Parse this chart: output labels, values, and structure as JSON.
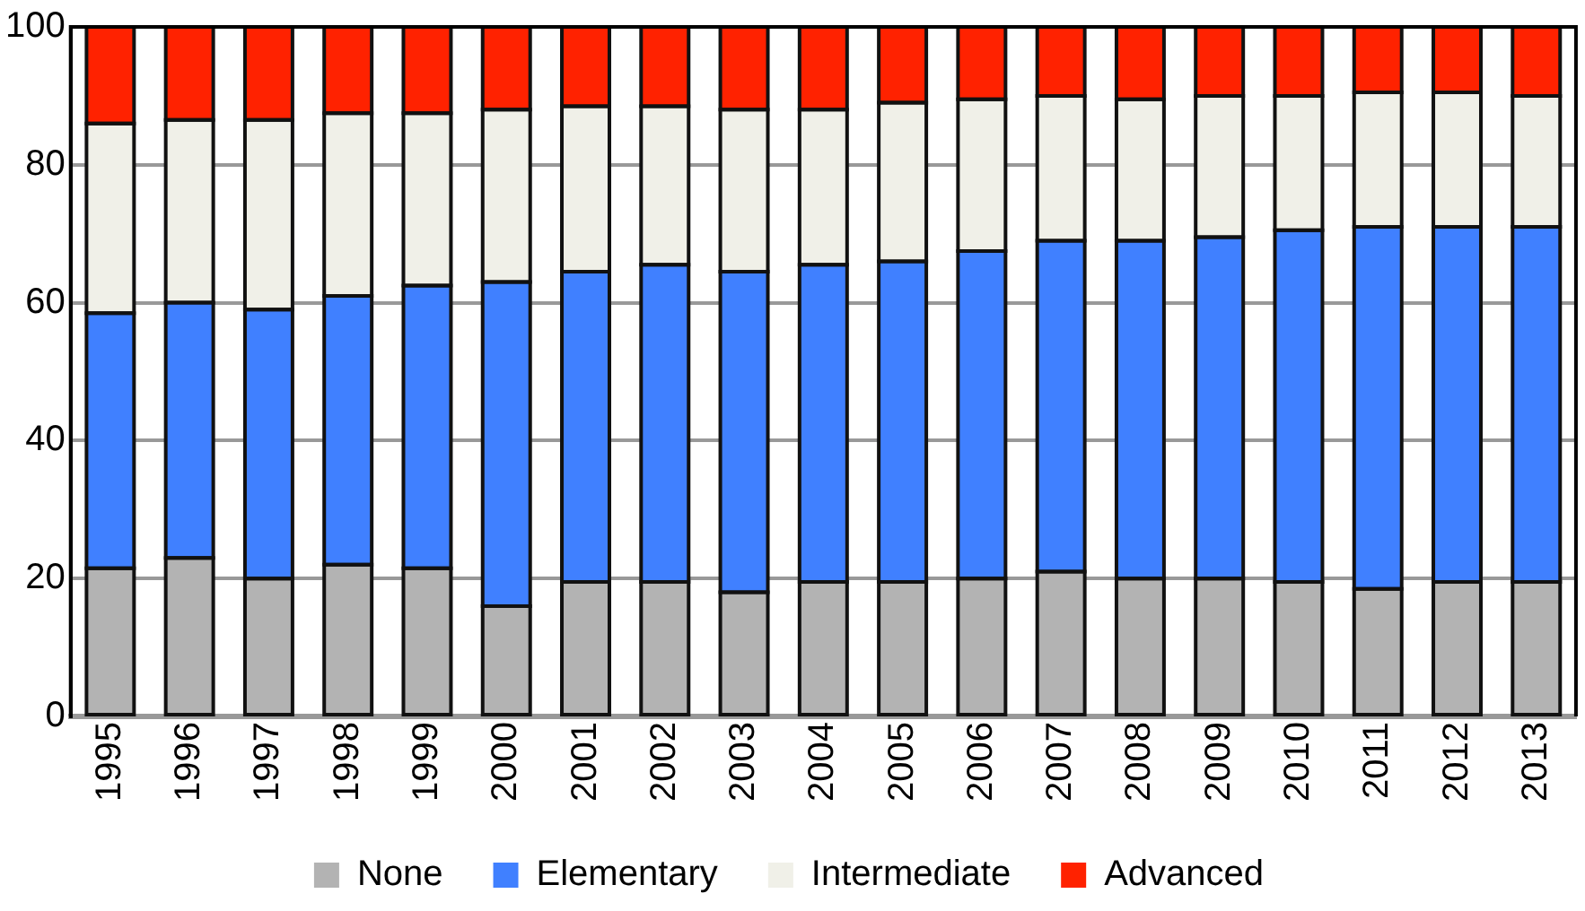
{
  "chart_data": {
    "type": "bar",
    "stacked": true,
    "grid": "y",
    "legend": "bottom",
    "categories": [
      "1995",
      "1996",
      "1997",
      "1998",
      "1999",
      "2000",
      "2001",
      "2002",
      "2003",
      "2004",
      "2005",
      "2006",
      "2007",
      "2008",
      "2009",
      "2010",
      "2011",
      "2012",
      "2013"
    ],
    "ylim": [
      0,
      100
    ],
    "yticks": [
      0,
      20,
      40,
      60,
      80,
      100
    ],
    "series": [
      {
        "name": "None",
        "color": "#b3b3b3",
        "values": [
          21.5,
          23,
          20,
          22,
          21.5,
          16,
          19.5,
          19.5,
          18,
          19.5,
          19.5,
          20,
          21,
          20,
          20,
          19.5,
          18.5,
          19.5,
          19.5
        ]
      },
      {
        "name": "Elementary",
        "color": "#4080ff",
        "values": [
          37,
          37,
          39,
          39,
          41,
          47,
          45,
          46,
          46.5,
          46,
          46.5,
          47.5,
          48,
          49,
          49.5,
          51,
          52.5,
          51.5,
          51.5
        ]
      },
      {
        "name": "Intermediate",
        "color": "#f0f0e8",
        "values": [
          27.5,
          26.5,
          27.5,
          26.5,
          25,
          25,
          24,
          23,
          23.5,
          22.5,
          23,
          22,
          21,
          20.5,
          20.5,
          19.5,
          19.5,
          19.5,
          19
        ]
      },
      {
        "name": "Advanced",
        "color": "#ff2200",
        "values": [
          14,
          13.5,
          13.5,
          12.5,
          12.5,
          12,
          11.5,
          11.5,
          12,
          12,
          11,
          10.5,
          10,
          10.5,
          10,
          10,
          9.5,
          9.5,
          10
        ]
      }
    ]
  }
}
